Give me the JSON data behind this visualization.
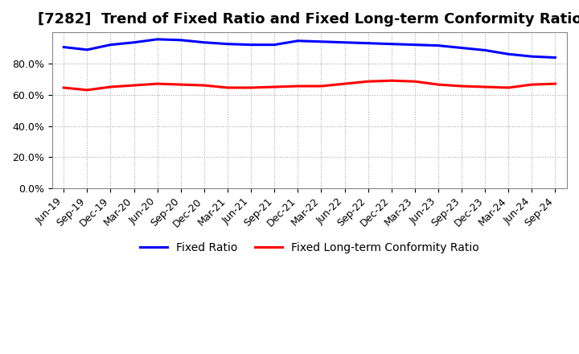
{
  "title": "[7282]  Trend of Fixed Ratio and Fixed Long-term Conformity Ratio",
  "x_labels": [
    "Jun-19",
    "Sep-19",
    "Dec-19",
    "Mar-20",
    "Jun-20",
    "Sep-20",
    "Dec-20",
    "Mar-21",
    "Jun-21",
    "Sep-21",
    "Dec-21",
    "Mar-22",
    "Jun-22",
    "Sep-22",
    "Dec-22",
    "Mar-23",
    "Jun-23",
    "Sep-23",
    "Dec-23",
    "Mar-24",
    "Jun-24",
    "Sep-24"
  ],
  "fixed_ratio": [
    90.5,
    88.8,
    92.0,
    93.5,
    95.5,
    95.0,
    93.5,
    92.5,
    92.0,
    92.0,
    94.5,
    94.0,
    93.5,
    93.0,
    92.5,
    92.0,
    91.5,
    90.0,
    88.5,
    86.0,
    84.5,
    83.8
  ],
  "fixed_lt_ratio": [
    64.5,
    63.0,
    65.0,
    66.0,
    67.0,
    66.5,
    66.0,
    64.5,
    64.5,
    65.0,
    65.5,
    65.5,
    67.0,
    68.5,
    69.0,
    68.5,
    66.5,
    65.5,
    65.0,
    64.5,
    66.5,
    67.0
  ],
  "fixed_ratio_color": "#0000FF",
  "fixed_lt_ratio_color": "#FF0000",
  "ylim": [
    0,
    100
  ],
  "yticks": [
    0,
    20,
    40,
    60,
    80
  ],
  "ytick_labels": [
    "0.0%",
    "20.0%",
    "40.0%",
    "60.0%",
    "80.0%"
  ],
  "bg_color": "#FFFFFF",
  "plot_bg_color": "#FFFFFF",
  "grid_color": "#AAAAAA",
  "legend_fixed_ratio": "Fixed Ratio",
  "legend_fixed_lt_ratio": "Fixed Long-term Conformity Ratio",
  "title_fontsize": 13,
  "tick_fontsize": 9,
  "legend_fontsize": 10
}
